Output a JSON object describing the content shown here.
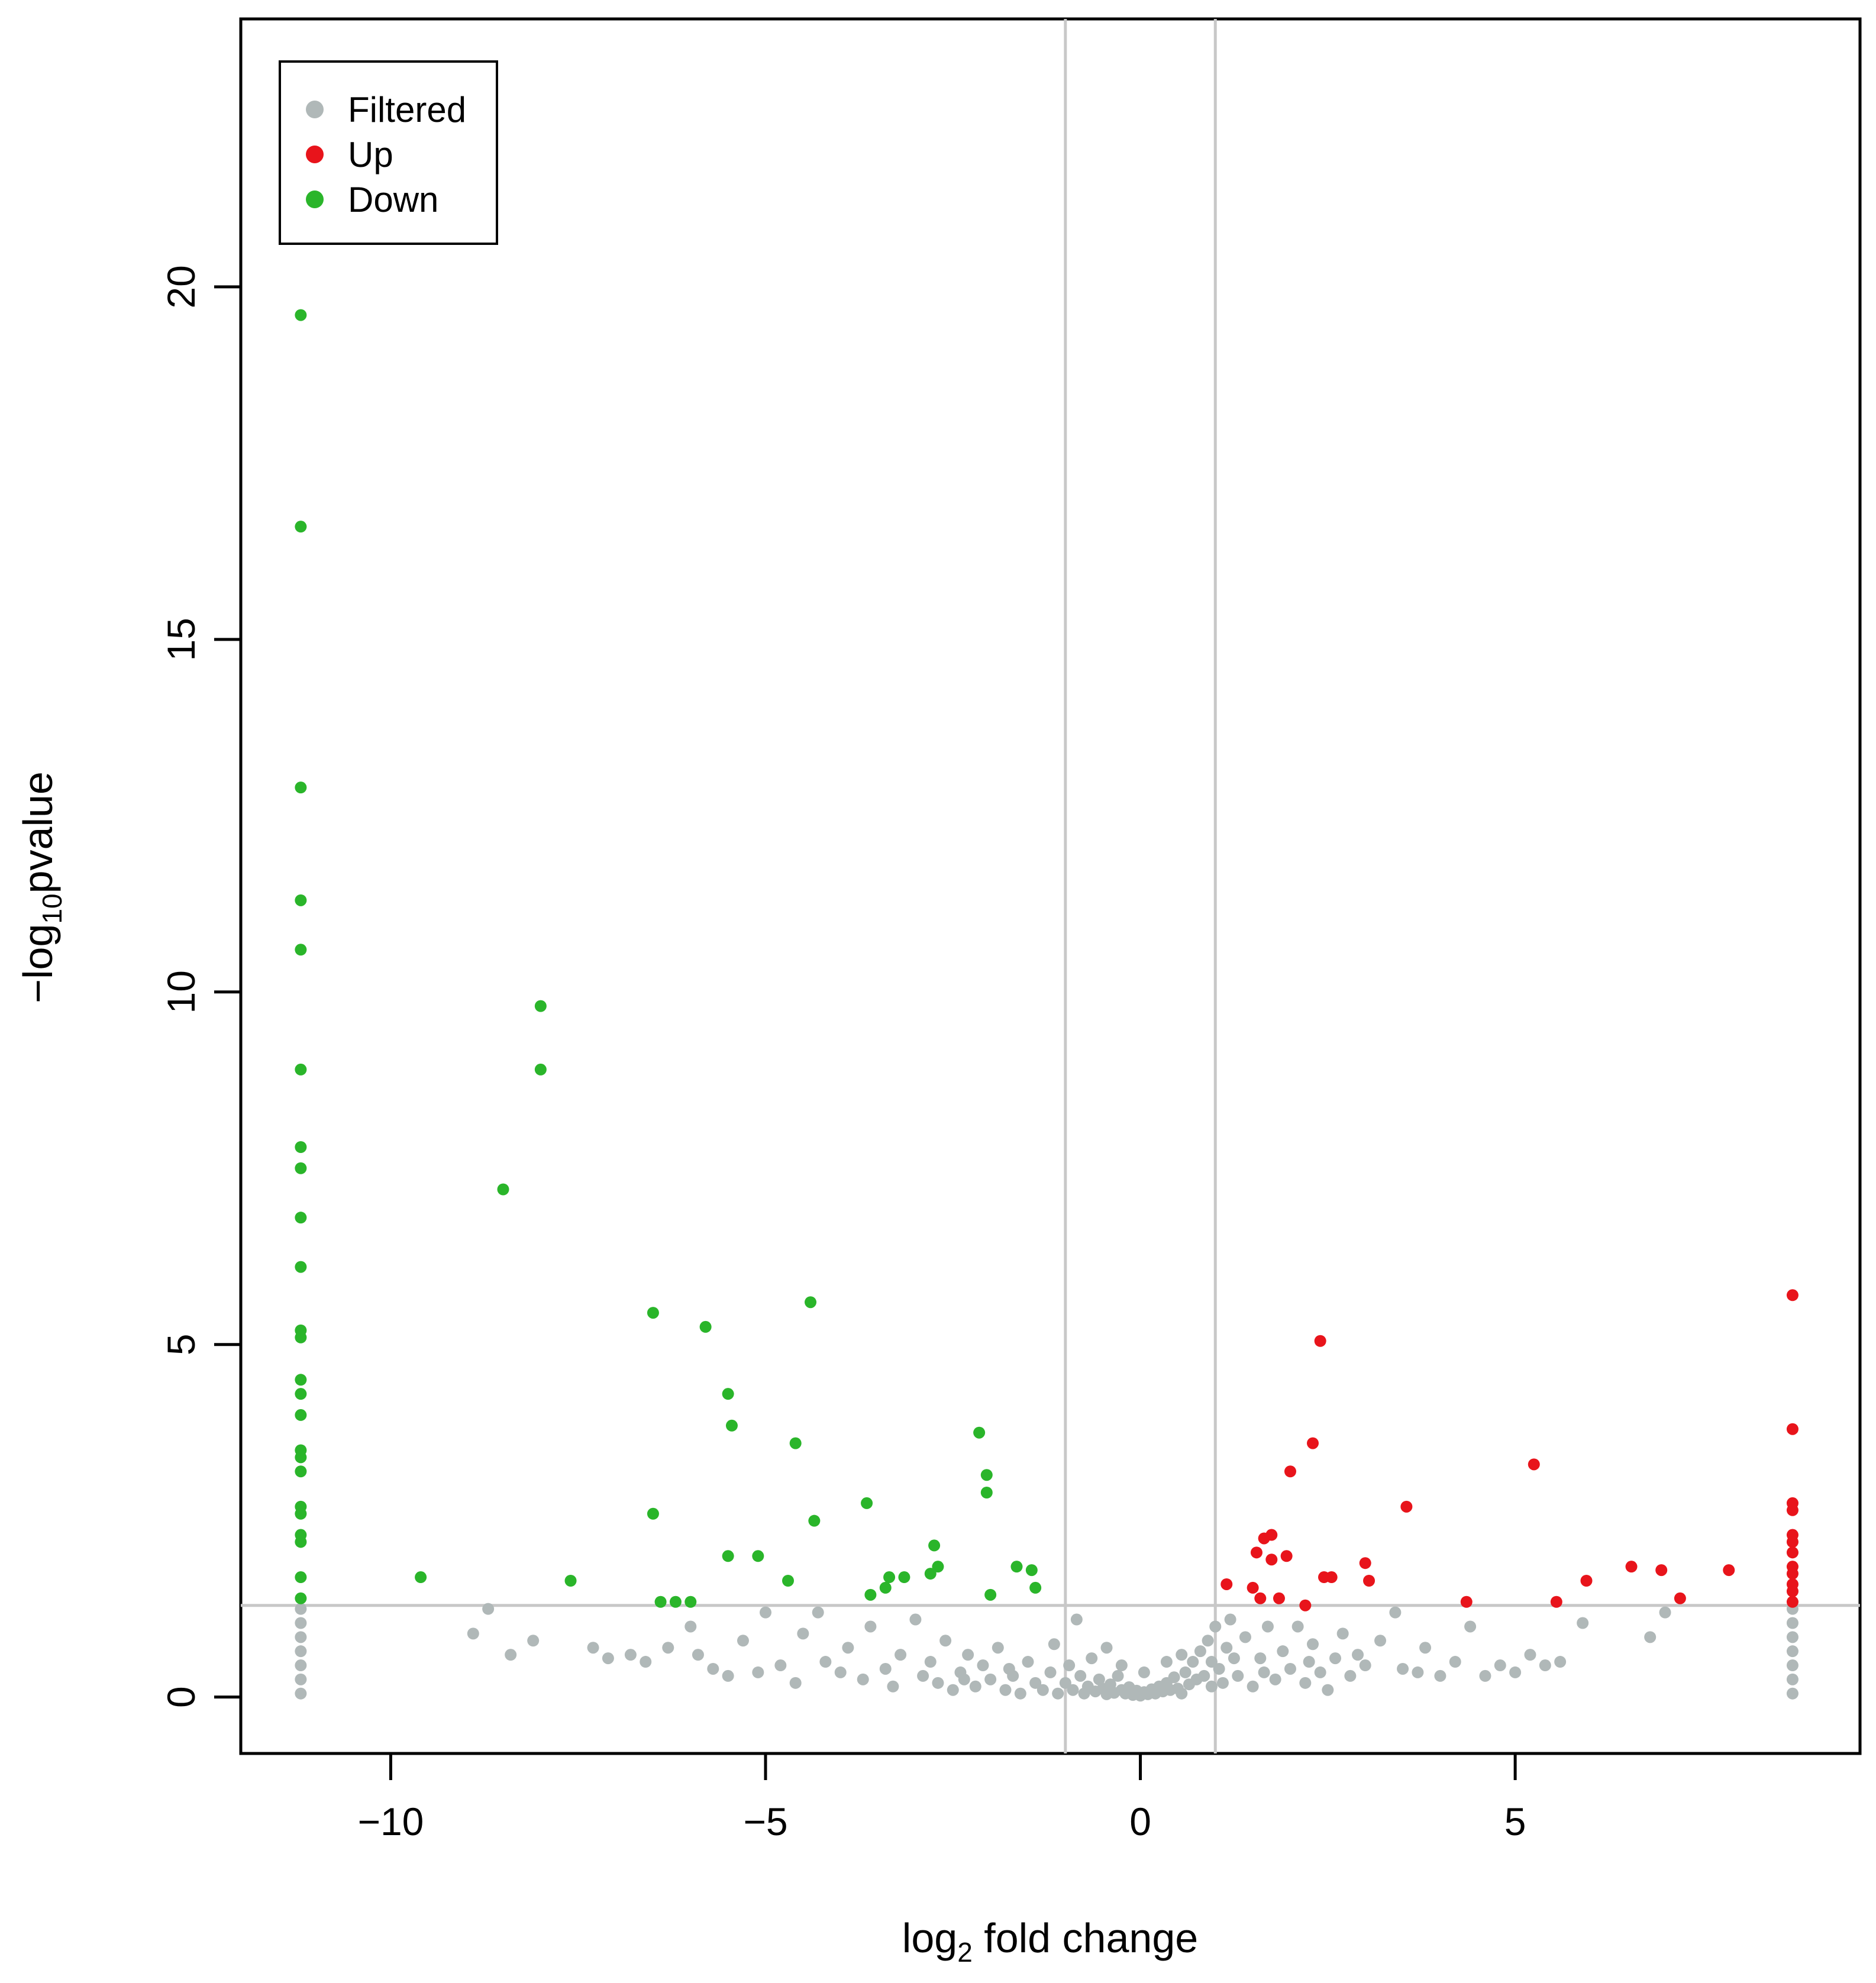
{
  "chart_data": {
    "type": "scatter",
    "title": "",
    "xlabel": {
      "main": "log",
      "sub": "2",
      "rest": " fold change"
    },
    "ylabel": {
      "main": "−log",
      "sub": "10",
      "rest": "pvalue"
    },
    "xlim": [
      -12.0,
      9.6
    ],
    "ylim": [
      -0.8,
      23.8
    ],
    "x_ticks": [
      -10,
      -5,
      0,
      5
    ],
    "x_tick_labels": [
      "−10",
      "−5",
      "0",
      "5"
    ],
    "y_ticks": [
      0,
      5,
      10,
      15,
      20
    ],
    "y_tick_labels": [
      "0",
      "5",
      "10",
      "15",
      "20"
    ],
    "vlines": [
      -1,
      1
    ],
    "hline": 1.3,
    "grid": false,
    "legend": {
      "position": "top-left",
      "entries": [
        {
          "label": "Filtered",
          "color": "#b0b8b8"
        },
        {
          "label": "Up",
          "color": "#e8141b"
        },
        {
          "label": "Down",
          "color": "#2ab52a"
        }
      ]
    },
    "series": [
      {
        "name": "Down",
        "color": "#2ab52a",
        "points": [
          [
            -11.2,
            19.6
          ],
          [
            -11.2,
            16.6
          ],
          [
            -11.2,
            12.9
          ],
          [
            -11.2,
            11.3
          ],
          [
            -11.2,
            10.6
          ],
          [
            -11.2,
            8.9
          ],
          [
            -11.2,
            7.8
          ],
          [
            -11.2,
            7.5
          ],
          [
            -11.2,
            6.8
          ],
          [
            -11.2,
            6.1
          ],
          [
            -11.2,
            5.2
          ],
          [
            -11.2,
            5.1
          ],
          [
            -11.2,
            4.5
          ],
          [
            -11.2,
            4.3
          ],
          [
            -11.2,
            4.0
          ],
          [
            -11.2,
            3.5
          ],
          [
            -11.2,
            3.4
          ],
          [
            -11.2,
            3.2
          ],
          [
            -11.2,
            2.7
          ],
          [
            -11.2,
            2.6
          ],
          [
            -11.2,
            2.3
          ],
          [
            -11.2,
            2.2
          ],
          [
            -11.2,
            1.7
          ],
          [
            -11.2,
            1.4
          ],
          [
            -9.6,
            1.7
          ],
          [
            -8.5,
            7.2
          ],
          [
            -8.0,
            9.8
          ],
          [
            -8.0,
            8.9
          ],
          [
            -7.6,
            1.65
          ],
          [
            -6.5,
            5.45
          ],
          [
            -6.5,
            2.6
          ],
          [
            -6.4,
            1.35
          ],
          [
            -6.2,
            1.35
          ],
          [
            -6.0,
            1.35
          ],
          [
            -5.8,
            5.25
          ],
          [
            -5.5,
            4.3
          ],
          [
            -5.45,
            3.85
          ],
          [
            -5.5,
            2.0
          ],
          [
            -5.1,
            2.0
          ],
          [
            -4.7,
            1.65
          ],
          [
            -4.6,
            3.6
          ],
          [
            -4.4,
            5.6
          ],
          [
            -4.35,
            2.5
          ],
          [
            -3.65,
            2.75
          ],
          [
            -3.6,
            1.45
          ],
          [
            -3.4,
            1.55
          ],
          [
            -3.35,
            1.7
          ],
          [
            -3.15,
            1.7
          ],
          [
            -2.8,
            1.75
          ],
          [
            -2.75,
            2.15
          ],
          [
            -2.7,
            1.85
          ],
          [
            -2.15,
            3.75
          ],
          [
            -2.05,
            3.15
          ],
          [
            -2.05,
            2.9
          ],
          [
            -2.0,
            1.45
          ],
          [
            -1.65,
            1.85
          ],
          [
            -1.45,
            1.8
          ],
          [
            -1.4,
            1.55
          ]
        ]
      },
      {
        "name": "Up",
        "color": "#e8141b",
        "points": [
          [
            1.15,
            1.6
          ],
          [
            1.5,
            1.55
          ],
          [
            1.55,
            2.05
          ],
          [
            1.6,
            1.4
          ],
          [
            1.65,
            2.25
          ],
          [
            1.75,
            2.3
          ],
          [
            1.75,
            1.95
          ],
          [
            1.85,
            1.4
          ],
          [
            1.95,
            2.0
          ],
          [
            2.0,
            3.2
          ],
          [
            2.2,
            1.3
          ],
          [
            2.3,
            3.6
          ],
          [
            2.4,
            5.05
          ],
          [
            2.45,
            1.7
          ],
          [
            2.55,
            1.7
          ],
          [
            3.0,
            1.9
          ],
          [
            3.05,
            1.65
          ],
          [
            3.55,
            2.7
          ],
          [
            4.35,
            1.35
          ],
          [
            5.25,
            3.3
          ],
          [
            5.55,
            1.35
          ],
          [
            5.95,
            1.65
          ],
          [
            6.55,
            1.85
          ],
          [
            6.95,
            1.8
          ],
          [
            7.2,
            1.4
          ],
          [
            7.85,
            1.8
          ],
          [
            8.7,
            5.7
          ],
          [
            8.7,
            3.8
          ],
          [
            8.7,
            2.75
          ],
          [
            8.7,
            2.65
          ],
          [
            8.7,
            2.3
          ],
          [
            8.7,
            2.2
          ],
          [
            8.7,
            2.05
          ],
          [
            8.7,
            1.85
          ],
          [
            8.7,
            1.75
          ],
          [
            8.7,
            1.6
          ],
          [
            8.7,
            1.5
          ],
          [
            8.7,
            1.35
          ]
        ]
      },
      {
        "name": "Filtered",
        "color": "#b0b8b8",
        "points": [
          [
            -11.2,
            1.25
          ],
          [
            -11.2,
            1.05
          ],
          [
            -11.2,
            0.85
          ],
          [
            -11.2,
            0.65
          ],
          [
            -11.2,
            0.45
          ],
          [
            -11.2,
            0.25
          ],
          [
            -11.2,
            0.05
          ],
          [
            8.7,
            1.25
          ],
          [
            8.7,
            1.05
          ],
          [
            8.7,
            0.85
          ],
          [
            8.7,
            0.65
          ],
          [
            8.7,
            0.45
          ],
          [
            8.7,
            0.25
          ],
          [
            8.7,
            0.05
          ],
          [
            -8.9,
            0.9
          ],
          [
            -8.7,
            1.25
          ],
          [
            -8.4,
            0.6
          ],
          [
            -8.1,
            0.8
          ],
          [
            -7.3,
            0.7
          ],
          [
            -7.1,
            0.55
          ],
          [
            -6.8,
            0.6
          ],
          [
            -6.6,
            0.5
          ],
          [
            -6.3,
            0.7
          ],
          [
            -6.0,
            1.0
          ],
          [
            -5.9,
            0.6
          ],
          [
            -5.7,
            0.4
          ],
          [
            -5.5,
            0.3
          ],
          [
            -5.3,
            0.8
          ],
          [
            -5.1,
            0.35
          ],
          [
            -5.0,
            1.2
          ],
          [
            -4.8,
            0.45
          ],
          [
            -4.6,
            0.2
          ],
          [
            -4.5,
            0.9
          ],
          [
            -4.3,
            1.2
          ],
          [
            -4.2,
            0.5
          ],
          [
            -4.0,
            0.35
          ],
          [
            -3.9,
            0.7
          ],
          [
            -3.7,
            0.25
          ],
          [
            -3.6,
            1.0
          ],
          [
            -3.4,
            0.4
          ],
          [
            -3.3,
            0.15
          ],
          [
            -3.2,
            0.6
          ],
          [
            -3.0,
            1.1
          ],
          [
            -2.9,
            0.3
          ],
          [
            -2.8,
            0.5
          ],
          [
            -2.7,
            0.2
          ],
          [
            -2.6,
            0.8
          ],
          [
            -2.5,
            0.1
          ],
          [
            -2.4,
            0.35
          ],
          [
            -2.3,
            0.6
          ],
          [
            -2.2,
            0.15
          ],
          [
            -2.1,
            0.45
          ],
          [
            -2.0,
            0.25
          ],
          [
            -1.9,
            0.7
          ],
          [
            -1.8,
            0.1
          ],
          [
            -1.7,
            0.3
          ],
          [
            -1.6,
            0.05
          ],
          [
            -1.5,
            0.5
          ],
          [
            -1.4,
            0.2
          ],
          [
            -1.3,
            0.1
          ],
          [
            -1.2,
            0.35
          ],
          [
            -1.1,
            0.05
          ],
          [
            -1.0,
            0.2
          ],
          [
            -0.9,
            0.1
          ],
          [
            -0.85,
            1.1
          ],
          [
            -0.8,
            0.3
          ],
          [
            -0.75,
            0.05
          ],
          [
            -0.7,
            0.15
          ],
          [
            -0.6,
            0.08
          ],
          [
            -0.55,
            0.25
          ],
          [
            -0.5,
            0.12
          ],
          [
            -0.45,
            0.04
          ],
          [
            -0.4,
            0.18
          ],
          [
            -0.35,
            0.06
          ],
          [
            -0.3,
            0.3
          ],
          [
            -0.25,
            0.1
          ],
          [
            -0.2,
            0.05
          ],
          [
            -0.15,
            0.14
          ],
          [
            -0.1,
            0.03
          ],
          [
            -0.05,
            0.09
          ],
          [
            0.0,
            0.02
          ],
          [
            0.05,
            0.07
          ],
          [
            0.1,
            0.04
          ],
          [
            0.15,
            0.11
          ],
          [
            0.2,
            0.05
          ],
          [
            0.25,
            0.15
          ],
          [
            0.3,
            0.08
          ],
          [
            0.35,
            0.2
          ],
          [
            0.4,
            0.1
          ],
          [
            0.45,
            0.28
          ],
          [
            0.5,
            0.12
          ],
          [
            0.55,
            0.05
          ],
          [
            0.6,
            0.35
          ],
          [
            0.65,
            0.18
          ],
          [
            0.7,
            0.5
          ],
          [
            0.75,
            0.25
          ],
          [
            0.8,
            0.65
          ],
          [
            0.85,
            0.3
          ],
          [
            0.9,
            0.8
          ],
          [
            0.95,
            0.15
          ],
          [
            1.0,
            1.0
          ],
          [
            1.05,
            0.4
          ],
          [
            1.1,
            0.2
          ],
          [
            1.15,
            0.7
          ],
          [
            1.2,
            1.1
          ],
          [
            1.3,
            0.3
          ],
          [
            1.4,
            0.85
          ],
          [
            1.5,
            0.15
          ],
          [
            1.6,
            0.55
          ],
          [
            1.7,
            1.0
          ],
          [
            1.8,
            0.25
          ],
          [
            1.9,
            0.65
          ],
          [
            2.0,
            0.4
          ],
          [
            2.1,
            1.0
          ],
          [
            2.2,
            0.2
          ],
          [
            2.3,
            0.75
          ],
          [
            2.4,
            0.35
          ],
          [
            2.5,
            0.1
          ],
          [
            2.6,
            0.55
          ],
          [
            2.7,
            0.9
          ],
          [
            2.8,
            0.3
          ],
          [
            2.9,
            0.6
          ],
          [
            3.0,
            0.45
          ],
          [
            3.2,
            0.8
          ],
          [
            3.4,
            1.2
          ],
          [
            3.5,
            0.4
          ],
          [
            3.7,
            0.35
          ],
          [
            3.8,
            0.7
          ],
          [
            4.0,
            0.3
          ],
          [
            4.2,
            0.5
          ],
          [
            4.4,
            1.0
          ],
          [
            4.6,
            0.3
          ],
          [
            4.8,
            0.45
          ],
          [
            5.0,
            0.35
          ],
          [
            5.2,
            0.6
          ],
          [
            5.4,
            0.45
          ],
          [
            5.6,
            0.5
          ],
          [
            5.9,
            1.05
          ],
          [
            6.8,
            0.85
          ],
          [
            7.0,
            1.2
          ],
          [
            -0.65,
            0.55
          ],
          [
            -0.25,
            0.45
          ],
          [
            0.05,
            0.35
          ],
          [
            0.35,
            0.5
          ],
          [
            -1.15,
            0.75
          ],
          [
            1.25,
            0.55
          ],
          [
            -1.75,
            0.4
          ],
          [
            1.65,
            0.35
          ],
          [
            -2.35,
            0.25
          ],
          [
            2.25,
            0.5
          ],
          [
            -0.95,
            0.45
          ],
          [
            0.95,
            0.5
          ],
          [
            -0.45,
            0.7
          ],
          [
            0.55,
            0.6
          ]
        ]
      }
    ]
  }
}
